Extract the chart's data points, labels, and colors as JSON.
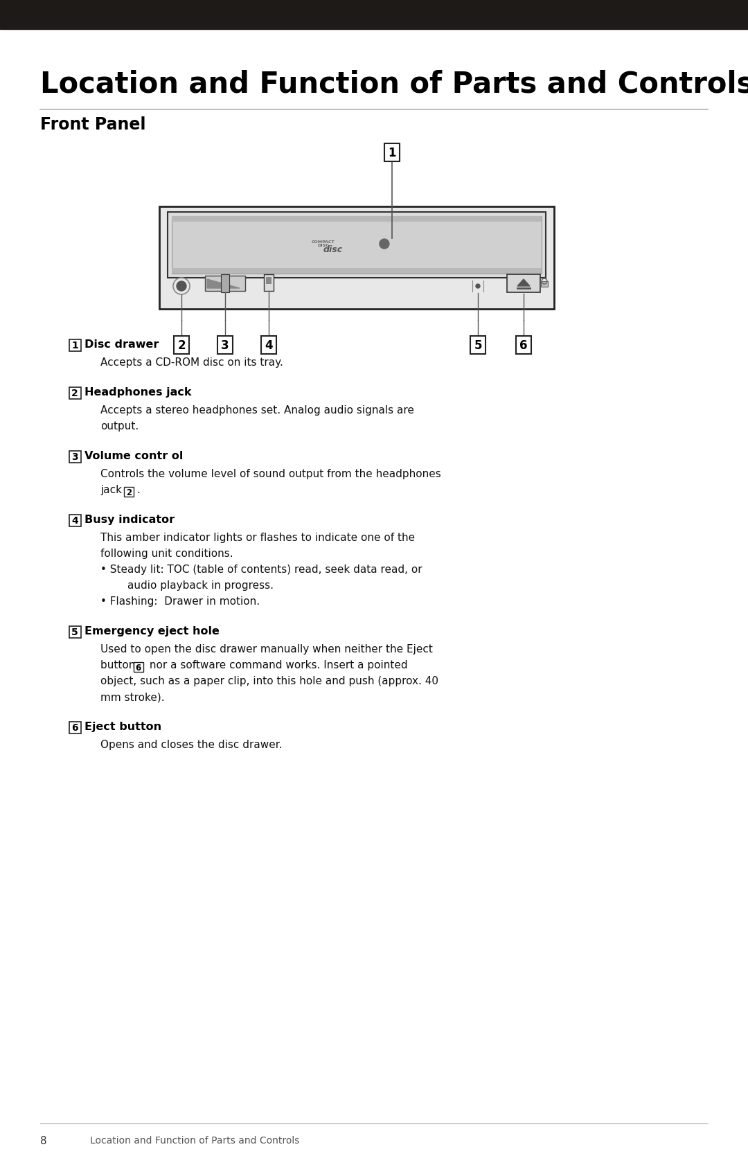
{
  "title": "Location and Function of Parts and Controls",
  "subtitle": "Front Panel",
  "bg_color": "#ffffff",
  "header_bar_color": "#1e1a18",
  "title_color": "#000000",
  "subtitle_color": "#000000",
  "separator_color": "#b0b0b0",
  "footer_page": "8",
  "footer_label": "Location and Function of Parts and Controls",
  "items": [
    {
      "num": "1",
      "label": "Disc drawer",
      "desc_lines": [
        "Accepts a CD-ROM disc on its tray."
      ]
    },
    {
      "num": "2",
      "label": "Headphones jack",
      "desc_lines": [
        "Accepts a stereo headphones set. Analog audio signals are",
        "output."
      ]
    },
    {
      "num": "3",
      "label": "Volume contr ol",
      "desc_lines": [
        "Controls the volume level of sound output from the headphones",
        "jack [2]."
      ]
    },
    {
      "num": "4",
      "label": "Busy indicator",
      "desc_lines": [
        "This amber indicator lights or flashes to indicate one of the",
        "following unit conditions.",
        "• Steady lit: TOC (table of contents) read, seek data read, or",
        "        audio playback in progress.",
        "• Flashing:  Drawer in motion."
      ]
    },
    {
      "num": "5",
      "label": "Emergency eject hole",
      "desc_lines": [
        "Used to open the disc drawer manually when neither the Eject",
        "button [6] nor a software command works. Insert a pointed",
        "object, such as a paper clip, into this hole and push (approx. 40",
        "mm stroke)."
      ]
    },
    {
      "num": "6",
      "label": "Eject button",
      "desc_lines": [
        "Opens and closes the disc drawer."
      ]
    }
  ]
}
